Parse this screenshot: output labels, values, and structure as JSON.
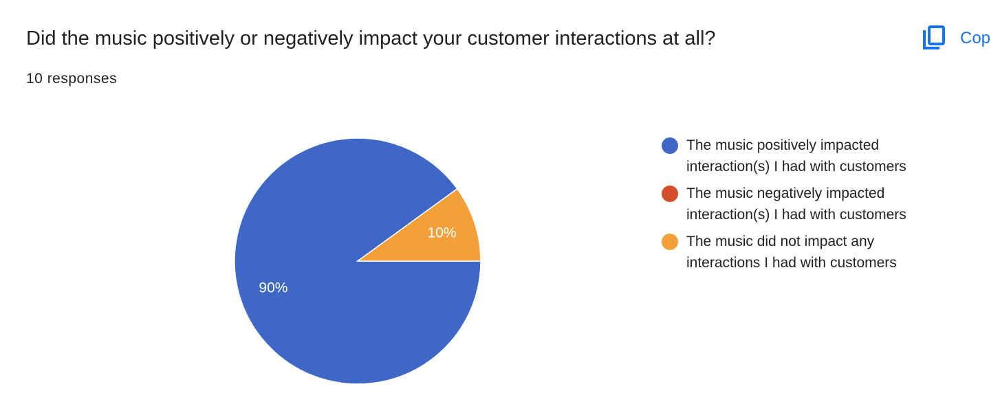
{
  "copy_label": "Cop",
  "chart_data": {
    "type": "pie",
    "title": "Did the music positively or negatively impact your customer interactions at all?",
    "subtitle": "10 responses",
    "categories": [
      "The music positively impacted interaction(s) I had with customers",
      "The music negatively impacted interaction(s) I had with customers",
      "The music did not impact any interactions I had with customers"
    ],
    "values": [
      90,
      0,
      10
    ],
    "value_labels": [
      "90%",
      null,
      "10%"
    ],
    "colors": [
      "#3f67c6",
      "#d24f2a",
      "#f4a03a"
    ],
    "legend": "right"
  }
}
